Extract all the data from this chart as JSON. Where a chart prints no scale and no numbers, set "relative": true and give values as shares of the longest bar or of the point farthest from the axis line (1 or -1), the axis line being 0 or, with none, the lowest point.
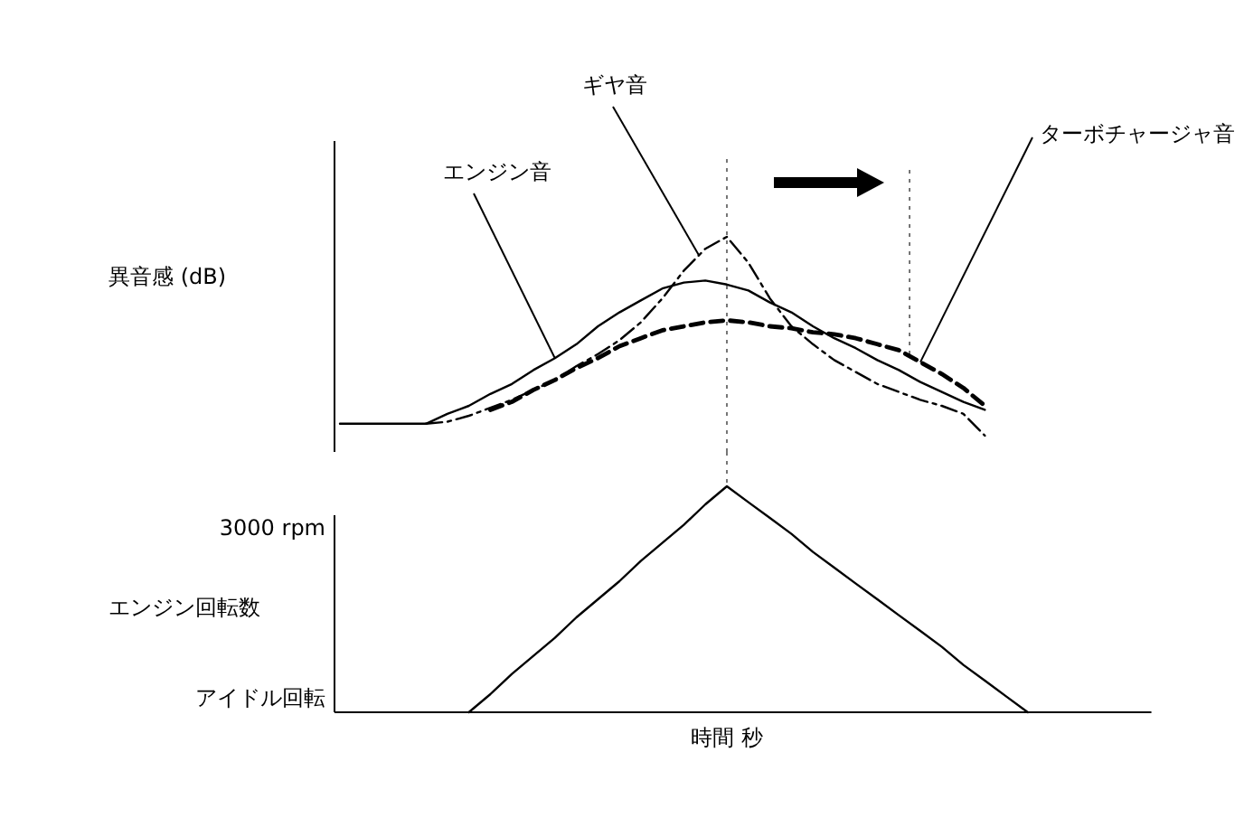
{
  "chart_data": [
    {
      "type": "line",
      "relative": true,
      "ylabel": "異音感 (dB)",
      "grid": false,
      "legend": false,
      "marker": "none",
      "categories": [
        null,
        null,
        null,
        null,
        null,
        null,
        null,
        null,
        null,
        null,
        null,
        null,
        null,
        null,
        null,
        null,
        null,
        null,
        null,
        null,
        null,
        null,
        null,
        null,
        null,
        null,
        null,
        null,
        null,
        null,
        null,
        null,
        null,
        null,
        null,
        null,
        null,
        null,
        null
      ],
      "series": [
        {
          "name": "エンジン音",
          "color": "#000000",
          "line_style": "solid",
          "values": [
            0.06,
            0.06,
            0.06,
            0.06,
            0.06,
            0.11,
            0.15,
            0.21,
            0.26,
            0.33,
            0.39,
            0.46,
            0.55,
            0.62,
            0.68,
            0.74,
            0.77,
            0.78,
            0.76,
            0.73,
            0.67,
            0.62,
            0.55,
            0.49,
            0.44,
            0.38,
            0.33,
            0.27,
            0.22,
            0.17,
            0.13,
            null,
            null,
            null,
            null,
            null,
            null,
            null,
            null
          ]
        },
        {
          "name": "ギヤ音",
          "color": "#000000",
          "line_style": "dashdot",
          "values": [
            null,
            null,
            null,
            null,
            0.06,
            0.07,
            0.1,
            0.14,
            0.18,
            0.23,
            0.28,
            0.35,
            0.41,
            0.48,
            0.57,
            0.69,
            0.83,
            0.94,
            1,
            0.87,
            0.69,
            0.55,
            0.46,
            0.38,
            0.32,
            0.26,
            0.22,
            0.18,
            0.15,
            0.11,
            0,
            null,
            null,
            null,
            null,
            null,
            null,
            null,
            null
          ]
        },
        {
          "name": "ターボチャージャ音",
          "color": "#000000",
          "line_style": "dashed",
          "values": [
            null,
            null,
            null,
            null,
            null,
            null,
            null,
            0.13,
            0.17,
            0.23,
            0.28,
            0.34,
            0.39,
            0.45,
            0.49,
            0.53,
            0.55,
            0.57,
            0.58,
            0.57,
            0.55,
            0.54,
            0.52,
            0.51,
            0.49,
            0.46,
            0.43,
            0.37,
            0.31,
            0.24,
            0.15,
            null,
            null,
            null,
            null,
            null,
            null,
            null,
            null
          ]
        }
      ]
    },
    {
      "type": "line",
      "relative": true,
      "ylabel": "エンジン回転数",
      "xlabel": "時間 秒",
      "grid": false,
      "legend": false,
      "marker": "none",
      "categories": [
        null,
        null,
        null,
        null,
        null,
        null,
        null,
        null,
        null,
        null,
        null,
        null,
        null,
        null,
        null,
        null,
        null,
        null,
        null,
        null,
        null,
        null,
        null,
        null,
        null,
        null,
        null,
        null,
        null,
        null,
        null,
        null,
        null,
        null,
        null,
        null,
        null,
        null,
        null
      ],
      "series": [
        {
          "color": "#000000",
          "line_style": "solid",
          "values": [
            null,
            null,
            null,
            null,
            null,
            null,
            0,
            0.08,
            0.17,
            0.25,
            0.33,
            0.42,
            0.5,
            0.58,
            0.67,
            0.75,
            0.83,
            0.92,
            1,
            0.93,
            0.86,
            0.79,
            0.71,
            0.64,
            0.57,
            0.5,
            0.43,
            0.36,
            0.29,
            0.21,
            0.14,
            0.07,
            0,
            null,
            null,
            null,
            null,
            null,
            null
          ]
        }
      ],
      "annotations": [
        "3000 rpm",
        "アイドル回転"
      ]
    }
  ]
}
